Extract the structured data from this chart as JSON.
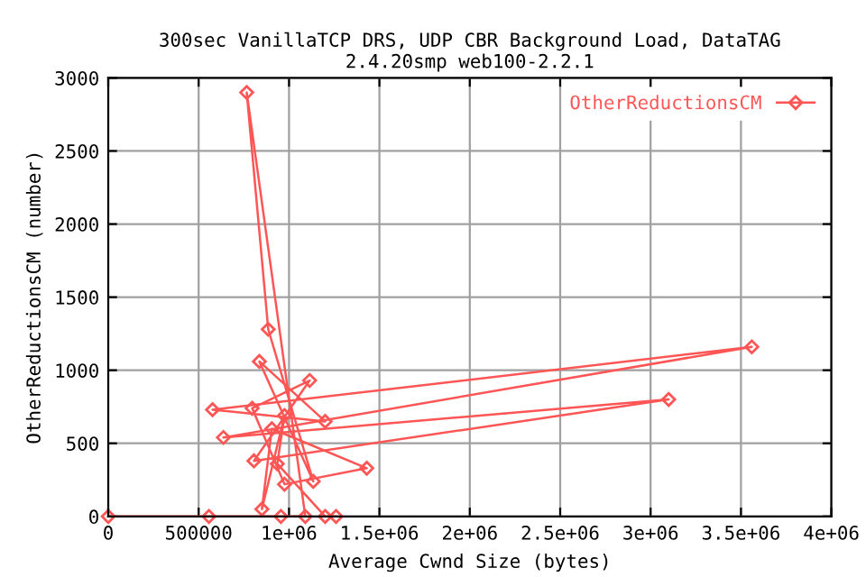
{
  "chart_data": {
    "type": "line",
    "title": "300sec VanillaTCP DRS, UDP CBR Background Load, DataTAG\n2.4.20smp web100-2.2.1",
    "xlabel": "Average Cwnd Size (bytes)",
    "ylabel": "OtherReductionsCM (number)",
    "series": [
      {
        "name": "OtherReductionsCM",
        "color": "#ff5555",
        "x": [
          0,
          557000,
          955000,
          1090000,
          766000,
          885000,
          1134000,
          836000,
          1200000,
          577000,
          3560000,
          637000,
          3100000,
          806000,
          1114000,
          796000,
          975000,
          1430000,
          905000,
          850000,
          975000,
          935000,
          1200000,
          1260000
        ],
        "values": [
          0,
          0,
          0,
          0,
          2900,
          1280,
          240,
          1060,
          650,
          730,
          1160,
          540,
          800,
          380,
          930,
          740,
          220,
          330,
          600,
          50,
          690,
          360,
          0,
          0
        ]
      }
    ],
    "xlim": [
      0,
      4000000
    ],
    "xticks": [
      {
        "value": 0,
        "label": "0"
      },
      {
        "value": 500000,
        "label": "500000"
      },
      {
        "value": 1000000,
        "label": "1e+06"
      },
      {
        "value": 1500000,
        "label": "1.5e+06"
      },
      {
        "value": 2000000,
        "label": "2e+06"
      },
      {
        "value": 2500000,
        "label": "2.5e+06"
      },
      {
        "value": 3000000,
        "label": "3e+06"
      },
      {
        "value": 3500000,
        "label": "3.5e+06"
      },
      {
        "value": 4000000,
        "label": "4e+06"
      }
    ],
    "ylim": [
      0,
      3000
    ],
    "yticks": [
      0,
      500,
      1000,
      1500,
      2000,
      2500,
      3000
    ],
    "grid": true,
    "legend": "top right",
    "marker": "diamond",
    "line_style": "solid"
  }
}
